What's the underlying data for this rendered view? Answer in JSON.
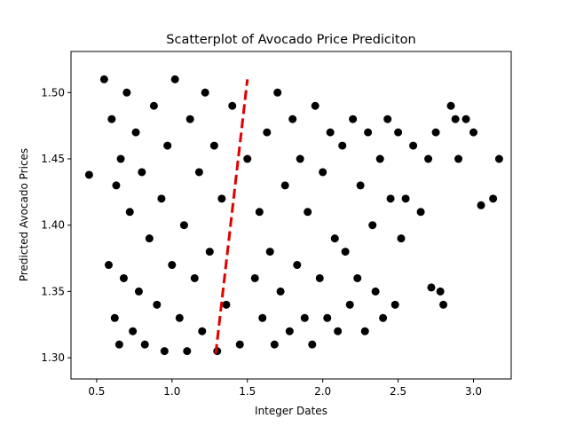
{
  "chart_data": {
    "type": "scatter",
    "title": "Scatterplot of Avocado Price Prediciton",
    "xlabel": "Integer Dates",
    "ylabel": "Predicted Avocado Prices",
    "xlim": [
      0.33,
      3.25
    ],
    "ylim": [
      1.284,
      1.531
    ],
    "x_ticks": [
      {
        "value": 0.5,
        "label": "0.5"
      },
      {
        "value": 1.0,
        "label": "1.0"
      },
      {
        "value": 1.5,
        "label": "1.5"
      },
      {
        "value": 2.0,
        "label": "2.0"
      },
      {
        "value": 2.5,
        "label": "2.5"
      },
      {
        "value": 3.0,
        "label": "3.0"
      }
    ],
    "y_ticks": [
      {
        "value": 1.3,
        "label": "1.30"
      },
      {
        "value": 1.35,
        "label": "1.35"
      },
      {
        "value": 1.4,
        "label": "1.40"
      },
      {
        "value": 1.45,
        "label": "1.45"
      },
      {
        "value": 1.5,
        "label": "1.50"
      }
    ],
    "grid": false,
    "series": [
      {
        "kind": "points",
        "color": "#000000",
        "x": [
          0.45,
          0.55,
          0.58,
          0.6,
          0.62,
          0.63,
          0.65,
          0.66,
          0.68,
          0.7,
          0.72,
          0.74,
          0.76,
          0.78,
          0.8,
          0.82,
          0.85,
          0.88,
          0.9,
          0.93,
          0.95,
          0.97,
          1.0,
          1.02,
          1.05,
          1.08,
          1.1,
          1.12,
          1.15,
          1.18,
          1.2,
          1.22,
          1.25,
          1.28,
          1.3,
          1.33,
          1.36,
          1.4,
          1.45,
          1.5,
          1.55,
          1.58,
          1.6,
          1.63,
          1.65,
          1.68,
          1.7,
          1.72,
          1.75,
          1.78,
          1.8,
          1.83,
          1.85,
          1.88,
          1.9,
          1.93,
          1.95,
          1.98,
          2.0,
          2.03,
          2.05,
          2.08,
          2.1,
          2.13,
          2.15,
          2.18,
          2.2,
          2.23,
          2.25,
          2.28,
          2.3,
          2.33,
          2.35,
          2.38,
          2.4,
          2.43,
          2.45,
          2.48,
          2.5,
          2.52,
          2.55,
          2.6,
          2.65,
          2.7,
          2.72,
          2.75,
          2.78,
          2.8,
          2.85,
          2.88,
          2.9,
          2.95,
          3.0,
          3.05,
          3.13,
          3.17
        ],
        "y": [
          1.438,
          1.51,
          1.37,
          1.48,
          1.33,
          1.43,
          1.31,
          1.45,
          1.36,
          1.5,
          1.41,
          1.32,
          1.47,
          1.35,
          1.44,
          1.31,
          1.39,
          1.49,
          1.34,
          1.42,
          1.305,
          1.46,
          1.37,
          1.51,
          1.33,
          1.4,
          1.305,
          1.48,
          1.36,
          1.44,
          1.32,
          1.5,
          1.38,
          1.46,
          1.305,
          1.42,
          1.34,
          1.49,
          1.31,
          1.45,
          1.36,
          1.41,
          1.33,
          1.47,
          1.38,
          1.31,
          1.5,
          1.35,
          1.43,
          1.32,
          1.48,
          1.37,
          1.45,
          1.33,
          1.41,
          1.31,
          1.49,
          1.36,
          1.44,
          1.33,
          1.47,
          1.39,
          1.32,
          1.46,
          1.38,
          1.34,
          1.48,
          1.36,
          1.43,
          1.32,
          1.47,
          1.4,
          1.35,
          1.45,
          1.33,
          1.48,
          1.42,
          1.34,
          1.47,
          1.39,
          1.42,
          1.46,
          1.41,
          1.45,
          1.353,
          1.47,
          1.35,
          1.34,
          1.49,
          1.48,
          1.45,
          1.48,
          1.47,
          1.415,
          1.42,
          1.45
        ]
      },
      {
        "kind": "line",
        "style": "dashed",
        "color": "#e00000",
        "x": [
          1.29,
          1.5
        ],
        "y": [
          1.303,
          1.51
        ]
      }
    ]
  }
}
